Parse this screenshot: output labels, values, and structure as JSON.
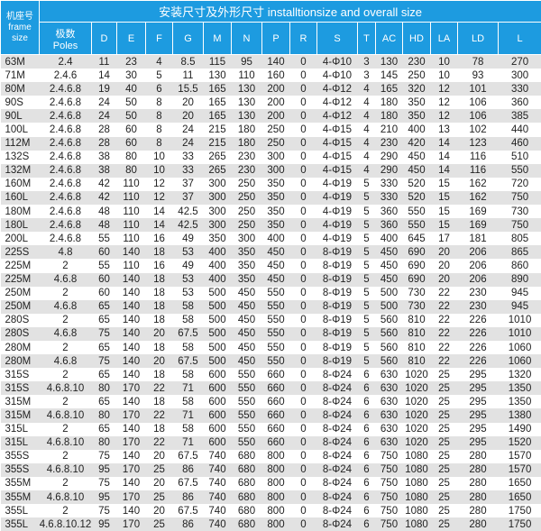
{
  "table": {
    "frame_header": "机座号\nframe size",
    "frame_header_cn": "机座号",
    "frame_header_en": "frame size",
    "title": "安装尺寸及外形尺寸 installtionsize and overall size",
    "poles_header_cn": "极数",
    "poles_header_en": "Poles",
    "columns": [
      "D",
      "E",
      "F",
      "G",
      "M",
      "N",
      "P",
      "R",
      "S",
      "T",
      "AC",
      "HD",
      "LA",
      "LD",
      "L"
    ],
    "rows": [
      [
        "63M",
        "2.4",
        "11",
        "23",
        "4",
        "8.5",
        "115",
        "95",
        "140",
        "0",
        "4-Φ10",
        "3",
        "130",
        "230",
        "10",
        "78",
        "270"
      ],
      [
        "71M",
        "2.4.6",
        "14",
        "30",
        "5",
        "11",
        "130",
        "110",
        "160",
        "0",
        "4-Φ10",
        "3",
        "145",
        "250",
        "10",
        "93",
        "300"
      ],
      [
        "80M",
        "2.4.6.8",
        "19",
        "40",
        "6",
        "15.5",
        "165",
        "130",
        "200",
        "0",
        "4-Φ12",
        "4",
        "165",
        "320",
        "12",
        "101",
        "330"
      ],
      [
        "90S",
        "2.4.6.8",
        "24",
        "50",
        "8",
        "20",
        "165",
        "130",
        "200",
        "0",
        "4-Φ12",
        "4",
        "180",
        "350",
        "12",
        "106",
        "360"
      ],
      [
        "90L",
        "2.4.6.8",
        "24",
        "50",
        "8",
        "20",
        "165",
        "130",
        "200",
        "0",
        "4-Φ12",
        "4",
        "180",
        "350",
        "12",
        "106",
        "385"
      ],
      [
        "100L",
        "2.4.6.8",
        "28",
        "60",
        "8",
        "24",
        "215",
        "180",
        "250",
        "0",
        "4-Φ15",
        "4",
        "210",
        "400",
        "13",
        "102",
        "440"
      ],
      [
        "112M",
        "2.4.6.8",
        "28",
        "60",
        "8",
        "24",
        "215",
        "180",
        "250",
        "0",
        "4-Φ15",
        "4",
        "230",
        "420",
        "14",
        "123",
        "460"
      ],
      [
        "132S",
        "2.4.6.8",
        "38",
        "80",
        "10",
        "33",
        "265",
        "230",
        "300",
        "0",
        "4-Φ15",
        "4",
        "290",
        "450",
        "14",
        "116",
        "510"
      ],
      [
        "132M",
        "2.4.6.8",
        "38",
        "80",
        "10",
        "33",
        "265",
        "230",
        "300",
        "0",
        "4-Φ15",
        "4",
        "290",
        "450",
        "14",
        "116",
        "550"
      ],
      [
        "160M",
        "2.4.6.8",
        "42",
        "110",
        "12",
        "37",
        "300",
        "250",
        "350",
        "0",
        "4-Φ19",
        "5",
        "330",
        "520",
        "15",
        "162",
        "720"
      ],
      [
        "160L",
        "2.4.6.8",
        "42",
        "110",
        "12",
        "37",
        "300",
        "250",
        "350",
        "0",
        "4-Φ19",
        "5",
        "330",
        "520",
        "15",
        "162",
        "750"
      ],
      [
        "180M",
        "2.4.6.8",
        "48",
        "110",
        "14",
        "42.5",
        "300",
        "250",
        "350",
        "0",
        "4-Φ19",
        "5",
        "360",
        "550",
        "15",
        "169",
        "730"
      ],
      [
        "180L",
        "2.4.6.8",
        "48",
        "110",
        "14",
        "42.5",
        "300",
        "250",
        "350",
        "0",
        "4-Φ19",
        "5",
        "360",
        "550",
        "15",
        "169",
        "750"
      ],
      [
        "200L",
        "2.4.6.8",
        "55",
        "110",
        "16",
        "49",
        "350",
        "300",
        "400",
        "0",
        "4-Φ19",
        "5",
        "400",
        "645",
        "17",
        "181",
        "805"
      ],
      [
        "225S",
        "4.8",
        "60",
        "140",
        "18",
        "53",
        "400",
        "350",
        "450",
        "0",
        "8-Φ19",
        "5",
        "450",
        "690",
        "20",
        "206",
        "865"
      ],
      [
        "225M",
        "2",
        "55",
        "110",
        "16",
        "49",
        "400",
        "350",
        "450",
        "0",
        "8-Φ19",
        "5",
        "450",
        "690",
        "20",
        "206",
        "860"
      ],
      [
        "225M",
        "4.6.8",
        "60",
        "140",
        "18",
        "53",
        "400",
        "350",
        "450",
        "0",
        "8-Φ19",
        "5",
        "450",
        "690",
        "20",
        "206",
        "890"
      ],
      [
        "250M",
        "2",
        "60",
        "140",
        "18",
        "53",
        "500",
        "450",
        "550",
        "0",
        "8-Φ19",
        "5",
        "500",
        "730",
        "22",
        "230",
        "945"
      ],
      [
        "250M",
        "4.6.8",
        "65",
        "140",
        "18",
        "58",
        "500",
        "450",
        "550",
        "0",
        "8-Φ19",
        "5",
        "500",
        "730",
        "22",
        "230",
        "945"
      ],
      [
        "280S",
        "2",
        "65",
        "140",
        "18",
        "58",
        "500",
        "450",
        "550",
        "0",
        "8-Φ19",
        "5",
        "560",
        "810",
        "22",
        "226",
        "1010"
      ],
      [
        "280S",
        "4.6.8",
        "75",
        "140",
        "20",
        "67.5",
        "500",
        "450",
        "550",
        "0",
        "8-Φ19",
        "5",
        "560",
        "810",
        "22",
        "226",
        "1010"
      ],
      [
        "280M",
        "2",
        "65",
        "140",
        "18",
        "58",
        "500",
        "450",
        "550",
        "0",
        "8-Φ19",
        "5",
        "560",
        "810",
        "22",
        "226",
        "1060"
      ],
      [
        "280M",
        "4.6.8",
        "75",
        "140",
        "20",
        "67.5",
        "500",
        "450",
        "550",
        "0",
        "8-Φ19",
        "5",
        "560",
        "810",
        "22",
        "226",
        "1060"
      ],
      [
        "315S",
        "2",
        "65",
        "140",
        "18",
        "58",
        "600",
        "550",
        "660",
        "0",
        "8-Φ24",
        "6",
        "630",
        "1020",
        "25",
        "295",
        "1320"
      ],
      [
        "315S",
        "4.6.8.10",
        "80",
        "170",
        "22",
        "71",
        "600",
        "550",
        "660",
        "0",
        "8-Φ24",
        "6",
        "630",
        "1020",
        "25",
        "295",
        "1350"
      ],
      [
        "315M",
        "2",
        "65",
        "140",
        "18",
        "58",
        "600",
        "550",
        "660",
        "0",
        "8-Φ24",
        "6",
        "630",
        "1020",
        "25",
        "295",
        "1350"
      ],
      [
        "315M",
        "4.6.8.10",
        "80",
        "170",
        "22",
        "71",
        "600",
        "550",
        "660",
        "0",
        "8-Φ24",
        "6",
        "630",
        "1020",
        "25",
        "295",
        "1380"
      ],
      [
        "315L",
        "2",
        "65",
        "140",
        "18",
        "58",
        "600",
        "550",
        "660",
        "0",
        "8-Φ24",
        "6",
        "630",
        "1020",
        "25",
        "295",
        "1490"
      ],
      [
        "315L",
        "4.6.8.10",
        "80",
        "170",
        "22",
        "71",
        "600",
        "550",
        "660",
        "0",
        "8-Φ24",
        "6",
        "630",
        "1020",
        "25",
        "295",
        "1520"
      ],
      [
        "355S",
        "2",
        "75",
        "140",
        "20",
        "67.5",
        "740",
        "680",
        "800",
        "0",
        "8-Φ24",
        "6",
        "750",
        "1080",
        "25",
        "280",
        "1570"
      ],
      [
        "355S",
        "4.6.8.10",
        "95",
        "170",
        "25",
        "86",
        "740",
        "680",
        "800",
        "0",
        "8-Φ24",
        "6",
        "750",
        "1080",
        "25",
        "280",
        "1570"
      ],
      [
        "355M",
        "2",
        "75",
        "140",
        "20",
        "67.5",
        "740",
        "680",
        "800",
        "0",
        "8-Φ24",
        "6",
        "750",
        "1080",
        "25",
        "280",
        "1650"
      ],
      [
        "355M",
        "4.6.8.10",
        "95",
        "170",
        "25",
        "86",
        "740",
        "680",
        "800",
        "0",
        "8-Φ24",
        "6",
        "750",
        "1080",
        "25",
        "280",
        "1650"
      ],
      [
        "355L",
        "2",
        "75",
        "140",
        "20",
        "67.5",
        "740",
        "680",
        "800",
        "0",
        "8-Φ24",
        "6",
        "750",
        "1080",
        "25",
        "280",
        "1750"
      ],
      [
        "355L",
        "4.6.8.10.12",
        "95",
        "170",
        "25",
        "86",
        "740",
        "680",
        "800",
        "0",
        "8-Φ24",
        "6",
        "750",
        "1080",
        "25",
        "280",
        "1750"
      ]
    ]
  },
  "colors": {
    "header_bg": "#1d9be0",
    "header_text": "#ffffff",
    "row_shade": "#e2e2e2"
  }
}
